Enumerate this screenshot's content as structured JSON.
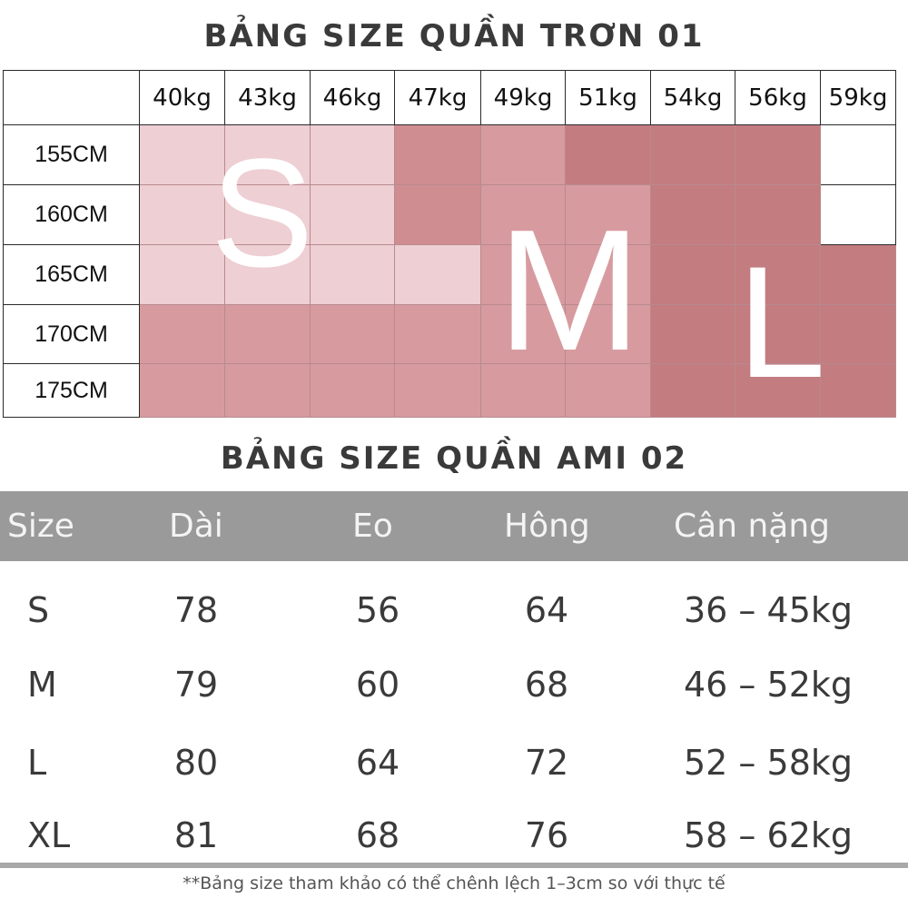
{
  "table1": {
    "title": "BẢNG SIZE QUẦN TRƠN 01",
    "weights": [
      "40kg",
      "43kg",
      "46kg",
      "47kg",
      "49kg",
      "51kg",
      "54kg",
      "56kg",
      "59kg"
    ],
    "heights": [
      "155CM",
      "160CM",
      "165CM",
      "170CM",
      "175CM"
    ],
    "size_labels": {
      "s": "S",
      "m": "M",
      "l": "L"
    },
    "colors": {
      "S": "#eecfd3",
      "M": "#d79b9f",
      "M2": "#cf8d92",
      "L": "#c37c80",
      "none": "#ffffff"
    },
    "cell_sizes": [
      [
        "S",
        "S",
        "S",
        "M2",
        "M",
        "L",
        "L",
        "L",
        "none"
      ],
      [
        "S",
        "S",
        "S",
        "M2",
        "M",
        "M",
        "L",
        "L",
        "none"
      ],
      [
        "S",
        "S",
        "S",
        "S",
        "M",
        "M",
        "L",
        "L",
        "L"
      ],
      [
        "M",
        "M",
        "M",
        "M",
        "M",
        "M",
        "L",
        "L",
        "L"
      ],
      [
        "M",
        "M",
        "M",
        "M",
        "M",
        "M",
        "L",
        "L",
        "L"
      ]
    ]
  },
  "table2": {
    "title": "BẢNG SIZE QUẦN AMI 02",
    "headers": [
      "Size",
      "Dài",
      "Eo",
      "Hông",
      "Cân nặng"
    ],
    "rows": [
      [
        "S",
        "78",
        "56",
        "64",
        "36 – 45kg"
      ],
      [
        "M",
        "79",
        "60",
        "68",
        "46 – 52kg"
      ],
      [
        "L",
        "80",
        "64",
        "72",
        "52 – 58kg"
      ],
      [
        "XL",
        "81",
        "68",
        "76",
        "58 – 62kg"
      ]
    ]
  },
  "note": "**Bảng size tham khảo có thể chênh lệch 1–3cm so với thực tế"
}
